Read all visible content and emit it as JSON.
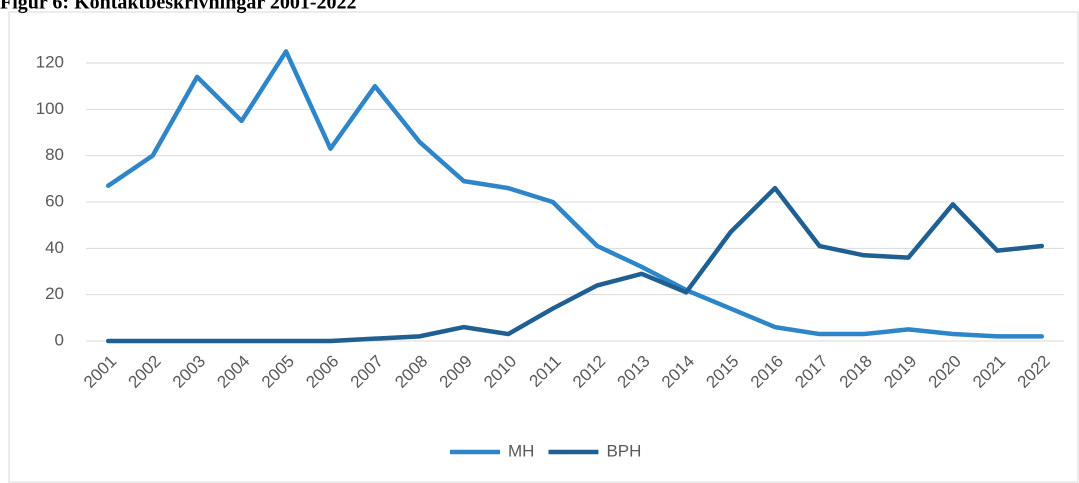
{
  "chart_data": {
    "type": "line",
    "title": "Figur 6: Kontaktbeskrivningar 2001-2022",
    "categories": [
      "2001",
      "2002",
      "2003",
      "2004",
      "2005",
      "2006",
      "2007",
      "2008",
      "2009",
      "2010",
      "2011",
      "2012",
      "2013",
      "2014",
      "2015",
      "2016",
      "2017",
      "2018",
      "2019",
      "2020",
      "2021",
      "2022"
    ],
    "series": [
      {
        "name": "MH",
        "color": "#2e86c9",
        "values": [
          67,
          80,
          114,
          95,
          125,
          83,
          110,
          86,
          69,
          66,
          60,
          41,
          32,
          22,
          14,
          6,
          3,
          3,
          5,
          3,
          2,
          2
        ]
      },
      {
        "name": "BPH",
        "color": "#1f5f91",
        "values": [
          0,
          0,
          0,
          0,
          0,
          0,
          1,
          2,
          6,
          3,
          14,
          24,
          29,
          21,
          47,
          66,
          41,
          37,
          36,
          59,
          39,
          41
        ]
      }
    ],
    "ylim": [
      0,
      120
    ],
    "yticks": [
      0,
      20,
      40,
      60,
      80,
      100,
      120
    ],
    "grid": true,
    "legend": "bottom"
  }
}
